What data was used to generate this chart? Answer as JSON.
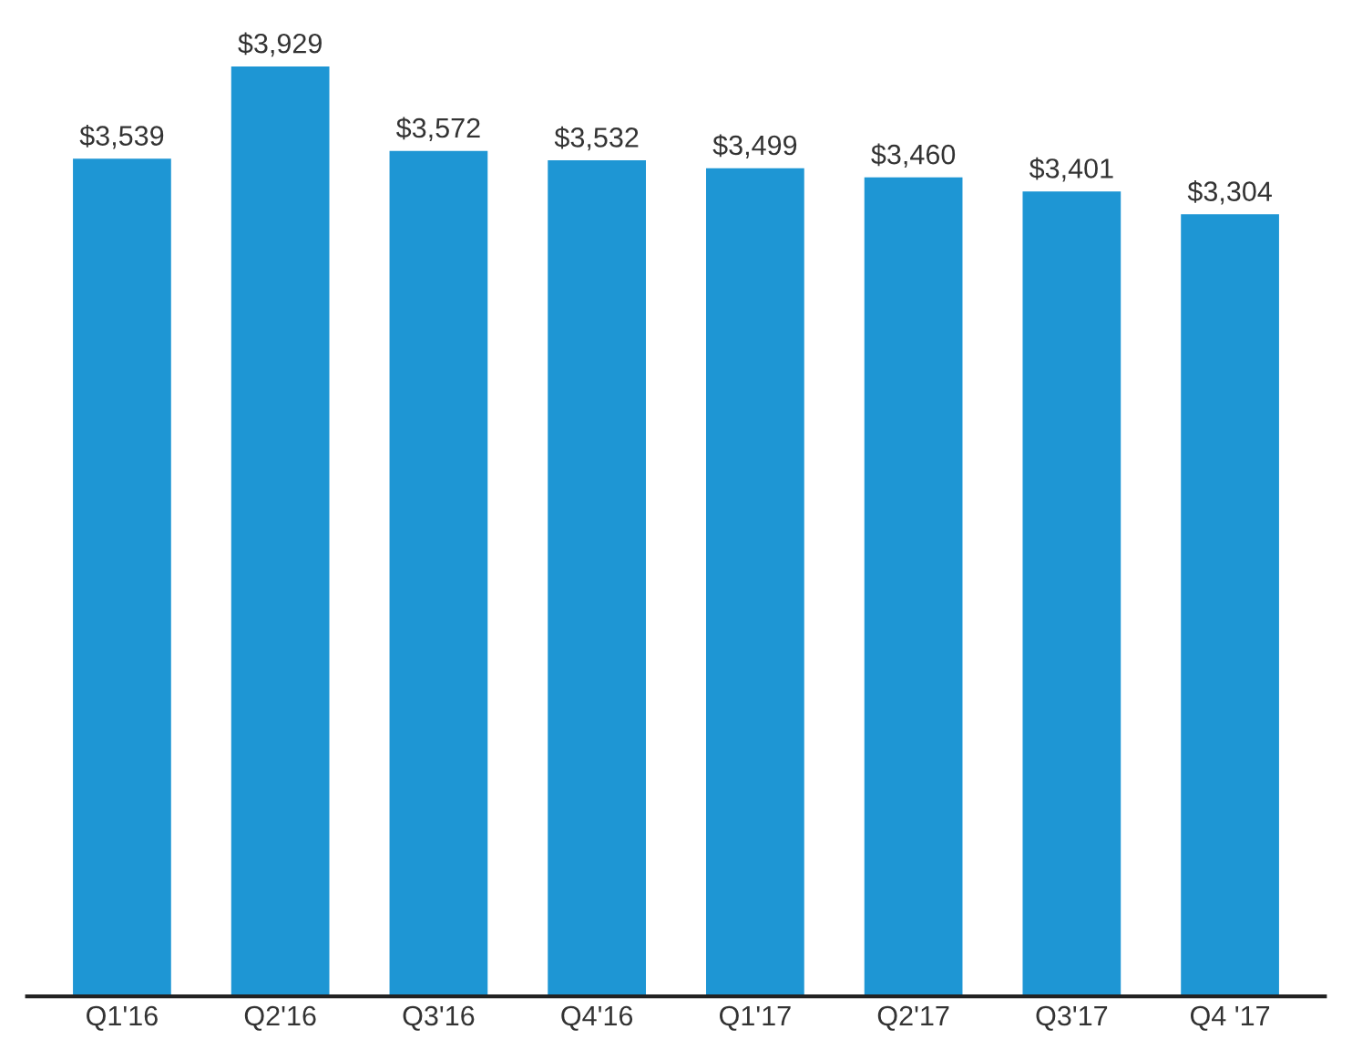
{
  "chart_data": {
    "type": "bar",
    "categories": [
      "Q1'16",
      "Q2'16",
      "Q3'16",
      "Q4'16",
      "Q1'17",
      "Q2'17",
      "Q3'17",
      "Q4 '17"
    ],
    "values": [
      3539,
      3929,
      3572,
      3532,
      3499,
      3460,
      3401,
      3304
    ],
    "value_labels": [
      "$3,539",
      "$3,929",
      "$3,572",
      "$3,532",
      "$3,499",
      "$3,460",
      "$3,401",
      "$3,304"
    ],
    "color": "#1e96d4",
    "tick_labels": "x",
    "grid": false,
    "legend": false
  }
}
